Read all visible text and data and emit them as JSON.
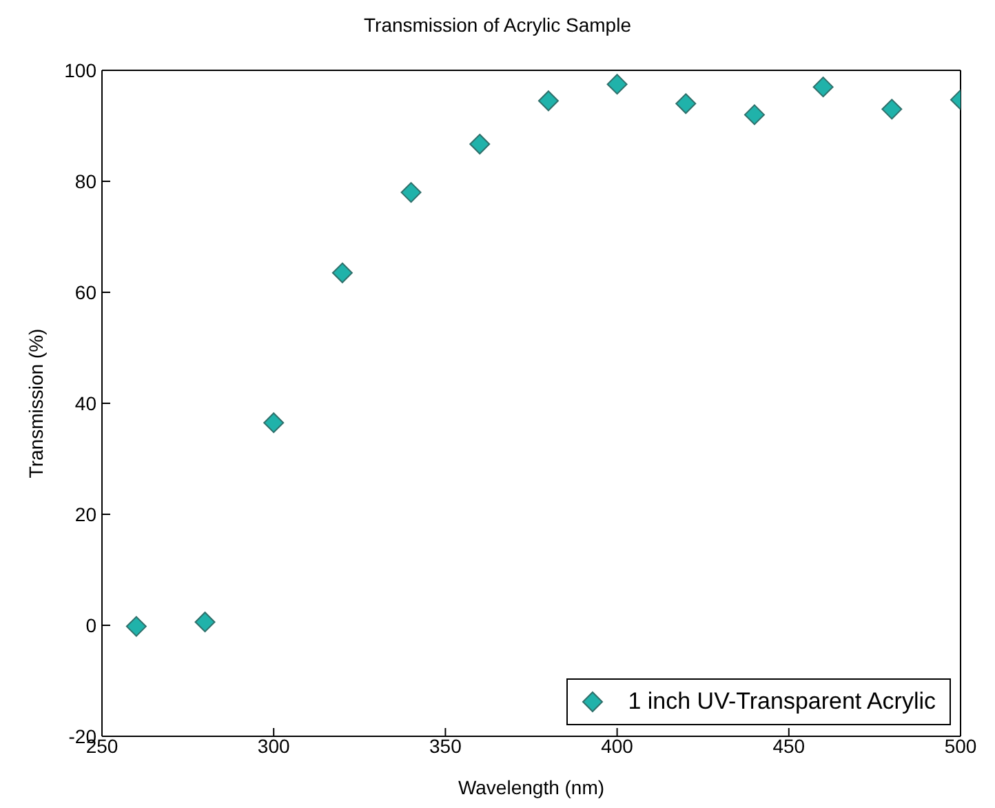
{
  "chart_data": {
    "type": "scatter",
    "title": "Transmission of Acrylic Sample",
    "xlabel": "Wavelength (nm)",
    "ylabel": "Transmission (%)",
    "x": [
      260,
      280,
      300,
      320,
      340,
      360,
      380,
      400,
      420,
      440,
      460,
      480,
      500
    ],
    "series": [
      {
        "name": "1 inch UV-Transparent Acrylic",
        "color": "#20b2aa",
        "values": [
          -0.2,
          0.6,
          36.5,
          63.5,
          78,
          86.7,
          94.5,
          97.5,
          94,
          92,
          97,
          93,
          94.7
        ]
      }
    ],
    "xlim": [
      250,
      500
    ],
    "xticks": [
      250,
      300,
      350,
      400,
      450,
      500
    ],
    "ylim": [
      -20,
      100
    ],
    "yticks": [
      -20,
      0,
      20,
      40,
      60,
      80,
      100
    ],
    "marker": "diamond",
    "legend": "bottom right"
  }
}
